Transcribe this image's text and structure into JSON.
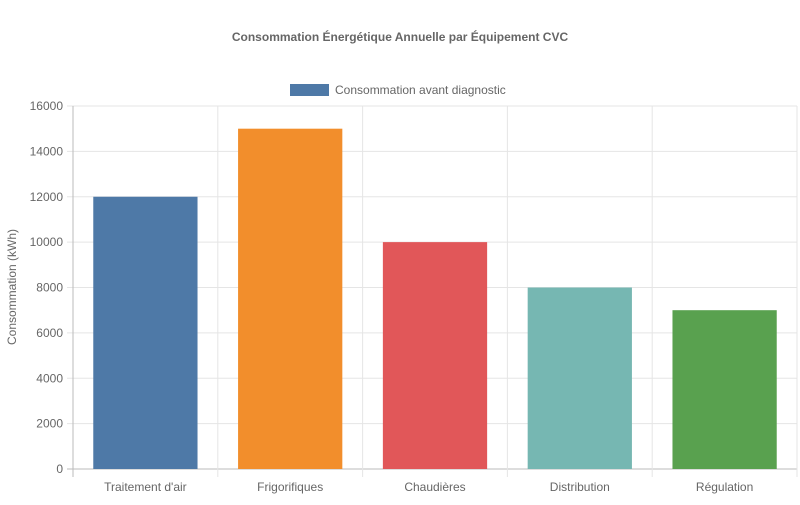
{
  "chart_data": {
    "type": "bar",
    "title": "Consommation Énergétique Annuelle par Équipement CVC",
    "xlabel": "",
    "ylabel": "Consommation (kWh)",
    "ylim": [
      0,
      16000
    ],
    "yticks": [
      0,
      2000,
      4000,
      6000,
      8000,
      10000,
      12000,
      14000,
      16000
    ],
    "grid": true,
    "legend_position": "top",
    "categories": [
      "Traitement d'air",
      "Frigorifiques",
      "Chaudières",
      "Distribution",
      "Régulation"
    ],
    "series": [
      {
        "name": "Consommation avant diagnostic",
        "values": [
          12000,
          15000,
          10000,
          8000,
          7000
        ],
        "colors": [
          "#4e79a7",
          "#f28e2c",
          "#e15759",
          "#76b7b2",
          "#59a14f"
        ]
      }
    ]
  }
}
